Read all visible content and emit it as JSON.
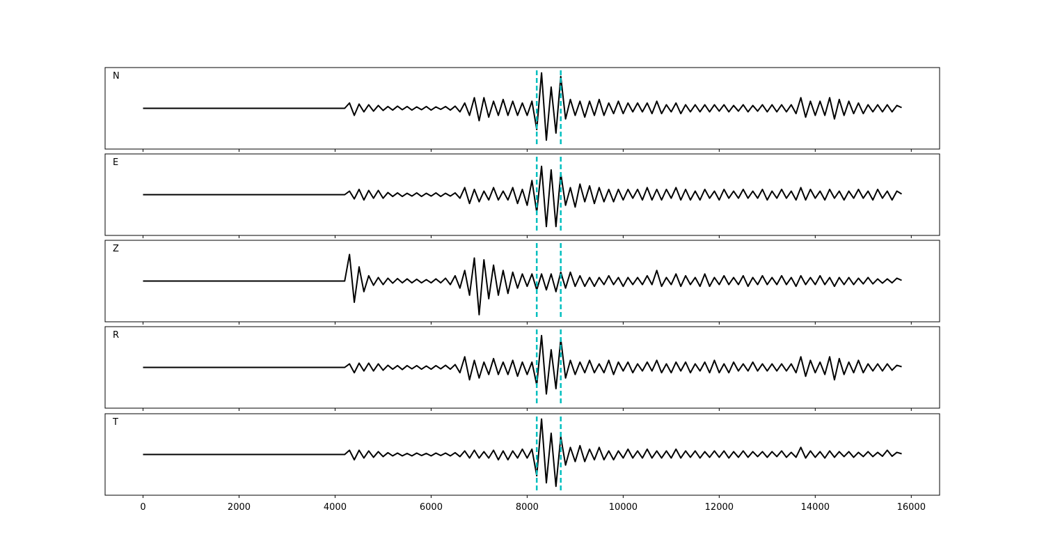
{
  "chart_data": {
    "type": "line",
    "x": [
      0,
      100,
      200,
      300,
      400,
      500,
      600,
      700,
      800,
      900,
      1000,
      1100,
      1200,
      1300,
      1400,
      1500,
      1600,
      1700,
      1800,
      1900,
      2000,
      2100,
      2200,
      2300,
      2400,
      2500,
      2600,
      2700,
      2800,
      2900,
      3000,
      3100,
      3200,
      3300,
      3400,
      3500,
      3600,
      3700,
      3800,
      3900,
      4000,
      4100,
      4200,
      4300,
      4400,
      4500,
      4600,
      4700,
      4800,
      4900,
      5000,
      5100,
      5200,
      5300,
      5400,
      5500,
      5600,
      5700,
      5800,
      5900,
      6000,
      6100,
      6200,
      6300,
      6400,
      6500,
      6600,
      6700,
      6800,
      6900,
      7000,
      7100,
      7200,
      7300,
      7400,
      7500,
      7600,
      7700,
      7800,
      7900,
      8000,
      8100,
      8200,
      8300,
      8400,
      8500,
      8600,
      8700,
      8800,
      8900,
      9000,
      9100,
      9200,
      9300,
      9400,
      9500,
      9600,
      9700,
      9800,
      9900,
      10000,
      10100,
      10200,
      10300,
      10400,
      10500,
      10600,
      10700,
      10800,
      10900,
      11000,
      11100,
      11200,
      11300,
      11400,
      11500,
      11600,
      11700,
      11800,
      11900,
      12000,
      12100,
      12200,
      12300,
      12400,
      12500,
      12600,
      12700,
      12800,
      12900,
      13000,
      13100,
      13200,
      13300,
      13400,
      13500,
      13600,
      13700,
      13800,
      13900,
      14000,
      14100,
      14200,
      14300,
      14400,
      14500,
      14600,
      14700,
      14800,
      14900,
      15000,
      15100,
      15200,
      15300,
      15400,
      15500,
      15600,
      15700,
      15800
    ],
    "series": [
      {
        "name": "N",
        "color": "#000000",
        "values": [
          0,
          0,
          0,
          0,
          0,
          0,
          0,
          0,
          0,
          0,
          0,
          0,
          0,
          0,
          0,
          0,
          0,
          0,
          0,
          0,
          0,
          0,
          0,
          0,
          0,
          0,
          0,
          0,
          0,
          0,
          0,
          0,
          0,
          0,
          0,
          0,
          0,
          0,
          0,
          0,
          0,
          0,
          0,
          0.15,
          -0.2,
          0.12,
          -0.1,
          0.1,
          -0.08,
          0.08,
          -0.06,
          0.05,
          -0.05,
          0.06,
          -0.04,
          0.05,
          -0.05,
          0.04,
          -0.04,
          0.05,
          -0.05,
          0.04,
          -0.03,
          0.05,
          -0.05,
          0.06,
          -0.1,
          0.15,
          -0.2,
          0.3,
          -0.35,
          0.3,
          -0.25,
          0.2,
          -0.2,
          0.25,
          -0.2,
          0.2,
          -0.2,
          0.15,
          -0.2,
          0.2,
          -0.6,
          1.0,
          -0.9,
          0.6,
          -0.7,
          0.9,
          -0.3,
          0.25,
          -0.2,
          0.2,
          -0.25,
          0.2,
          -0.2,
          0.25,
          -0.2,
          0.15,
          -0.15,
          0.2,
          -0.15,
          0.15,
          -0.1,
          0.15,
          -0.1,
          0.15,
          -0.15,
          0.2,
          -0.15,
          0.1,
          -0.1,
          0.15,
          -0.15,
          0.1,
          -0.1,
          0.1,
          -0.1,
          0.1,
          -0.1,
          0.1,
          -0.08,
          0.1,
          -0.1,
          0.08,
          -0.08,
          0.1,
          -0.1,
          0.08,
          -0.08,
          0.1,
          -0.1,
          0.1,
          -0.1,
          0.1,
          -0.1,
          0.1,
          -0.15,
          0.3,
          -0.25,
          0.2,
          -0.2,
          0.2,
          -0.2,
          0.3,
          -0.3,
          0.25,
          -0.2,
          0.2,
          -0.15,
          0.15,
          -0.15,
          0.1,
          -0.1,
          0.1,
          -0.1,
          0.1,
          -0.1,
          0.08,
          0.02
        ]
      },
      {
        "name": "E",
        "color": "#000000",
        "values": [
          0,
          0,
          0,
          0,
          0,
          0,
          0,
          0,
          0,
          0,
          0,
          0,
          0,
          0,
          0,
          0,
          0,
          0,
          0,
          0,
          0,
          0,
          0,
          0,
          0,
          0,
          0,
          0,
          0,
          0,
          0,
          0,
          0,
          0,
          0,
          0,
          0,
          0,
          0,
          0,
          0,
          0,
          0,
          0.1,
          -0.12,
          0.15,
          -0.15,
          0.12,
          -0.1,
          0.12,
          -0.1,
          0.06,
          -0.05,
          0.05,
          -0.05,
          0.04,
          -0.04,
          0.05,
          -0.05,
          0.04,
          -0.04,
          0.05,
          -0.05,
          0.04,
          -0.04,
          0.05,
          -0.1,
          0.2,
          -0.25,
          0.15,
          -0.2,
          0.1,
          -0.15,
          0.2,
          -0.15,
          0.1,
          -0.15,
          0.2,
          -0.25,
          0.15,
          -0.3,
          0.4,
          -0.5,
          0.8,
          -0.9,
          0.7,
          -0.9,
          0.6,
          -0.3,
          0.2,
          -0.35,
          0.3,
          -0.2,
          0.25,
          -0.25,
          0.2,
          -0.2,
          0.15,
          -0.2,
          0.15,
          -0.15,
          0.15,
          -0.1,
          0.15,
          -0.15,
          0.2,
          -0.15,
          0.15,
          -0.15,
          0.15,
          -0.1,
          0.2,
          -0.15,
          0.15,
          -0.15,
          0.1,
          -0.15,
          0.15,
          -0.1,
          0.1,
          -0.15,
          0.15,
          -0.1,
          0.1,
          -0.1,
          0.15,
          -0.1,
          0.1,
          -0.1,
          0.15,
          -0.15,
          0.1,
          -0.1,
          0.15,
          -0.1,
          0.1,
          -0.15,
          0.2,
          -0.15,
          0.15,
          -0.1,
          0.1,
          -0.15,
          0.15,
          -0.1,
          0.1,
          -0.15,
          0.1,
          -0.1,
          0.15,
          -0.1,
          0.1,
          -0.15,
          0.15,
          -0.1,
          0.1,
          -0.15,
          0.1,
          0.02
        ]
      },
      {
        "name": "Z",
        "color": "#000000",
        "values": [
          0,
          0,
          0,
          0,
          0,
          0,
          0,
          0,
          0,
          0,
          0,
          0,
          0,
          0,
          0,
          0,
          0,
          0,
          0,
          0,
          0,
          0,
          0,
          0,
          0,
          0,
          0,
          0,
          0,
          0,
          0,
          0,
          0,
          0,
          0,
          0,
          0,
          0,
          0,
          0,
          0,
          0,
          0,
          0.75,
          -0.6,
          0.4,
          -0.3,
          0.15,
          -0.12,
          0.1,
          -0.1,
          0.08,
          -0.06,
          0.07,
          -0.05,
          0.06,
          -0.05,
          0.05,
          -0.05,
          0.04,
          -0.05,
          0.06,
          -0.05,
          0.08,
          -0.1,
          0.15,
          -0.2,
          0.3,
          -0.4,
          0.65,
          -0.95,
          0.6,
          -0.5,
          0.45,
          -0.4,
          0.3,
          -0.35,
          0.25,
          -0.2,
          0.2,
          -0.15,
          0.2,
          -0.25,
          0.2,
          -0.25,
          0.2,
          -0.3,
          0.25,
          -0.2,
          0.25,
          -0.15,
          0.15,
          -0.15,
          0.1,
          -0.15,
          0.1,
          -0.1,
          0.15,
          -0.1,
          0.1,
          -0.15,
          0.1,
          -0.1,
          0.1,
          -0.1,
          0.15,
          -0.1,
          0.3,
          -0.15,
          0.1,
          -0.1,
          0.2,
          -0.15,
          0.15,
          -0.1,
          0.1,
          -0.15,
          0.2,
          -0.15,
          0.1,
          -0.1,
          0.15,
          -0.1,
          0.1,
          -0.1,
          0.15,
          -0.15,
          0.1,
          -0.1,
          0.15,
          -0.1,
          0.1,
          -0.1,
          0.15,
          -0.1,
          0.1,
          -0.15,
          0.15,
          -0.1,
          0.1,
          -0.1,
          0.15,
          -0.1,
          0.1,
          -0.15,
          0.1,
          -0.1,
          0.1,
          -0.1,
          0.08,
          -0.08,
          0.1,
          -0.08,
          0.06,
          -0.06,
          0.06,
          -0.05,
          0.08,
          0.02
        ]
      },
      {
        "name": "R",
        "color": "#000000",
        "values": [
          0,
          0,
          0,
          0,
          0,
          0,
          0,
          0,
          0,
          0,
          0,
          0,
          0,
          0,
          0,
          0,
          0,
          0,
          0,
          0,
          0,
          0,
          0,
          0,
          0,
          0,
          0,
          0,
          0,
          0,
          0,
          0,
          0,
          0,
          0,
          0,
          0,
          0,
          0,
          0,
          0,
          0,
          0,
          0.1,
          -0.15,
          0.12,
          -0.1,
          0.12,
          -0.1,
          0.1,
          -0.08,
          0.06,
          -0.05,
          0.05,
          -0.06,
          0.05,
          -0.04,
          0.05,
          -0.05,
          0.04,
          -0.05,
          0.05,
          -0.04,
          0.06,
          -0.05,
          0.08,
          -0.15,
          0.3,
          -0.35,
          0.2,
          -0.3,
          0.15,
          -0.2,
          0.25,
          -0.2,
          0.15,
          -0.2,
          0.2,
          -0.25,
          0.15,
          -0.2,
          0.15,
          -0.5,
          0.9,
          -0.75,
          0.5,
          -0.6,
          0.8,
          -0.3,
          0.2,
          -0.2,
          0.15,
          -0.15,
          0.2,
          -0.15,
          0.1,
          -0.15,
          0.2,
          -0.2,
          0.15,
          -0.1,
          0.15,
          -0.15,
          0.1,
          -0.1,
          0.15,
          -0.1,
          0.2,
          -0.15,
          0.1,
          -0.15,
          0.15,
          -0.1,
          0.15,
          -0.15,
          0.1,
          -0.1,
          0.15,
          -0.15,
          0.2,
          -0.15,
          0.1,
          -0.15,
          0.15,
          -0.1,
          0.1,
          -0.1,
          0.15,
          -0.1,
          0.1,
          -0.1,
          0.1,
          -0.1,
          0.1,
          -0.1,
          0.1,
          -0.15,
          0.3,
          -0.25,
          0.2,
          -0.15,
          0.15,
          -0.2,
          0.3,
          -0.35,
          0.25,
          -0.2,
          0.15,
          -0.15,
          0.2,
          -0.15,
          0.1,
          -0.1,
          0.1,
          -0.1,
          0.1,
          -0.08,
          0.06,
          0.02
        ]
      },
      {
        "name": "T",
        "color": "#000000",
        "values": [
          0,
          0,
          0,
          0,
          0,
          0,
          0,
          0,
          0,
          0,
          0,
          0,
          0,
          0,
          0,
          0,
          0,
          0,
          0,
          0,
          0,
          0,
          0,
          0,
          0,
          0,
          0,
          0,
          0,
          0,
          0,
          0,
          0,
          0,
          0,
          0,
          0,
          0,
          0,
          0,
          0,
          0,
          0,
          0.12,
          -0.15,
          0.12,
          -0.1,
          0.1,
          -0.08,
          0.08,
          -0.06,
          0.05,
          -0.04,
          0.04,
          -0.04,
          0.03,
          -0.04,
          0.04,
          -0.03,
          0.03,
          -0.04,
          0.04,
          -0.03,
          0.04,
          -0.04,
          0.05,
          -0.06,
          0.1,
          -0.1,
          0.12,
          -0.1,
          0.08,
          -0.1,
          0.12,
          -0.15,
          0.1,
          -0.15,
          0.1,
          -0.1,
          0.15,
          -0.1,
          0.15,
          -0.6,
          1.0,
          -0.8,
          0.6,
          -0.9,
          0.5,
          -0.3,
          0.2,
          -0.2,
          0.25,
          -0.2,
          0.15,
          -0.15,
          0.2,
          -0.15,
          0.1,
          -0.15,
          0.1,
          -0.1,
          0.15,
          -0.1,
          0.1,
          -0.1,
          0.15,
          -0.1,
          0.1,
          -0.1,
          0.1,
          -0.1,
          0.15,
          -0.1,
          0.1,
          -0.08,
          0.1,
          -0.1,
          0.08,
          -0.08,
          0.1,
          -0.08,
          0.1,
          -0.1,
          0.08,
          -0.08,
          0.1,
          -0.08,
          0.08,
          -0.06,
          0.08,
          -0.08,
          0.08,
          -0.06,
          0.1,
          -0.08,
          0.06,
          -0.08,
          0.2,
          -0.1,
          0.1,
          -0.08,
          0.08,
          -0.1,
          0.1,
          -0.08,
          0.08,
          -0.06,
          0.08,
          -0.08,
          0.06,
          -0.06,
          0.08,
          -0.06,
          0.06,
          -0.05,
          0.12,
          -0.05,
          0.06,
          0.02
        ]
      }
    ],
    "vlines": [
      8200,
      8700
    ],
    "vline_color": "#00bfbf",
    "xlim": [
      -790,
      16590
    ],
    "xticks": [
      0,
      2000,
      4000,
      6000,
      8000,
      10000,
      12000,
      14000,
      16000
    ],
    "ylim": [
      -1.15,
      1.15
    ]
  }
}
